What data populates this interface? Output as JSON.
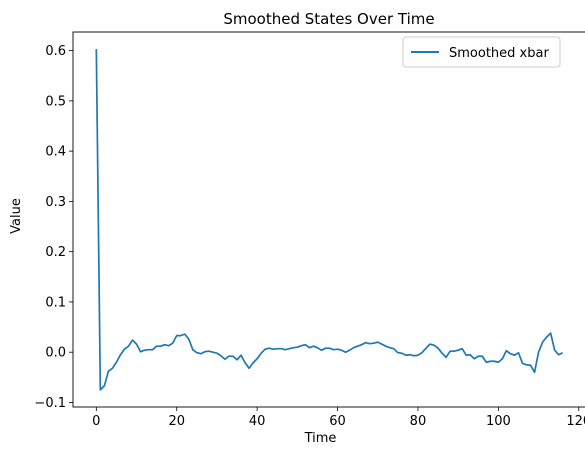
{
  "chart_data": {
    "type": "line",
    "title": "Smoothed States Over Time",
    "xlabel": "Time",
    "ylabel": "Value",
    "xlim": [
      -5.8,
      121.8
    ],
    "ylim": [
      -0.109,
      0.637
    ],
    "xticks": [
      0,
      20,
      40,
      60,
      80,
      100,
      120
    ],
    "yticks": [
      -0.1,
      0.0,
      0.1,
      0.2,
      0.3,
      0.4,
      0.5,
      0.6
    ],
    "xtick_labels": [
      "0",
      "20",
      "40",
      "60",
      "80",
      "100",
      "120"
    ],
    "ytick_labels": [
      "−0.1",
      "0.0",
      "0.1",
      "0.2",
      "0.3",
      "0.4",
      "0.5",
      "0.6"
    ],
    "grid": false,
    "legend_position": "upper-right",
    "series": [
      {
        "name": "Smoothed xbar",
        "color": "#1f77b4",
        "x": [
          0,
          1,
          2,
          3,
          4,
          5,
          6,
          7,
          8,
          9,
          10,
          11,
          12,
          13,
          14,
          15,
          16,
          17,
          18,
          19,
          20,
          21,
          22,
          23,
          24,
          25,
          26,
          27,
          28,
          29,
          30,
          31,
          32,
          33,
          34,
          35,
          36,
          37,
          38,
          39,
          40,
          41,
          42,
          43,
          44,
          45,
          46,
          47,
          48,
          49,
          50,
          51,
          52,
          53,
          54,
          55,
          56,
          57,
          58,
          59,
          60,
          61,
          62,
          63,
          64,
          65,
          66,
          67,
          68,
          69,
          70,
          71,
          72,
          73,
          74,
          75,
          76,
          77,
          78,
          79,
          80,
          81,
          82,
          83,
          84,
          85,
          86,
          87,
          88,
          89,
          90,
          91,
          92,
          93,
          94,
          95,
          96,
          97,
          98,
          99,
          100,
          101,
          102,
          103,
          104,
          105,
          106,
          107,
          108,
          109,
          110,
          111,
          112,
          113,
          114,
          115,
          116
        ],
        "y": [
          0.603,
          -0.075,
          -0.067,
          -0.038,
          -0.032,
          -0.02,
          -0.005,
          0.006,
          0.012,
          0.024,
          0.016,
          0.001,
          0.004,
          0.005,
          0.005,
          0.012,
          0.012,
          0.015,
          0.013,
          0.018,
          0.033,
          0.033,
          0.036,
          0.026,
          0.005,
          -0.001,
          -0.003,
          0.001,
          0.002,
          0.0,
          -0.002,
          -0.007,
          -0.014,
          -0.008,
          -0.008,
          -0.015,
          -0.006,
          -0.021,
          -0.032,
          -0.021,
          -0.013,
          -0.002,
          0.006,
          0.008,
          0.006,
          0.007,
          0.007,
          0.005,
          0.007,
          0.009,
          0.01,
          0.013,
          0.015,
          0.009,
          0.012,
          0.009,
          0.004,
          0.008,
          0.008,
          0.005,
          0.006,
          0.004,
          0.0,
          0.004,
          0.009,
          0.012,
          0.015,
          0.019,
          0.017,
          0.018,
          0.02,
          0.016,
          0.012,
          0.009,
          0.007,
          -0.001,
          -0.002,
          -0.006,
          -0.005,
          -0.007,
          -0.006,
          -0.001,
          0.008,
          0.016,
          0.014,
          0.008,
          -0.002,
          -0.01,
          0.002,
          0.002,
          0.004,
          0.007,
          -0.006,
          -0.005,
          -0.013,
          -0.008,
          -0.008,
          -0.02,
          -0.018,
          -0.018,
          -0.02,
          -0.013,
          0.003,
          -0.003,
          -0.006,
          -0.001,
          -0.022,
          -0.025,
          -0.026,
          -0.04,
          0.0,
          0.02,
          0.03,
          0.038,
          0.004,
          -0.005,
          -0.001
        ]
      }
    ]
  }
}
